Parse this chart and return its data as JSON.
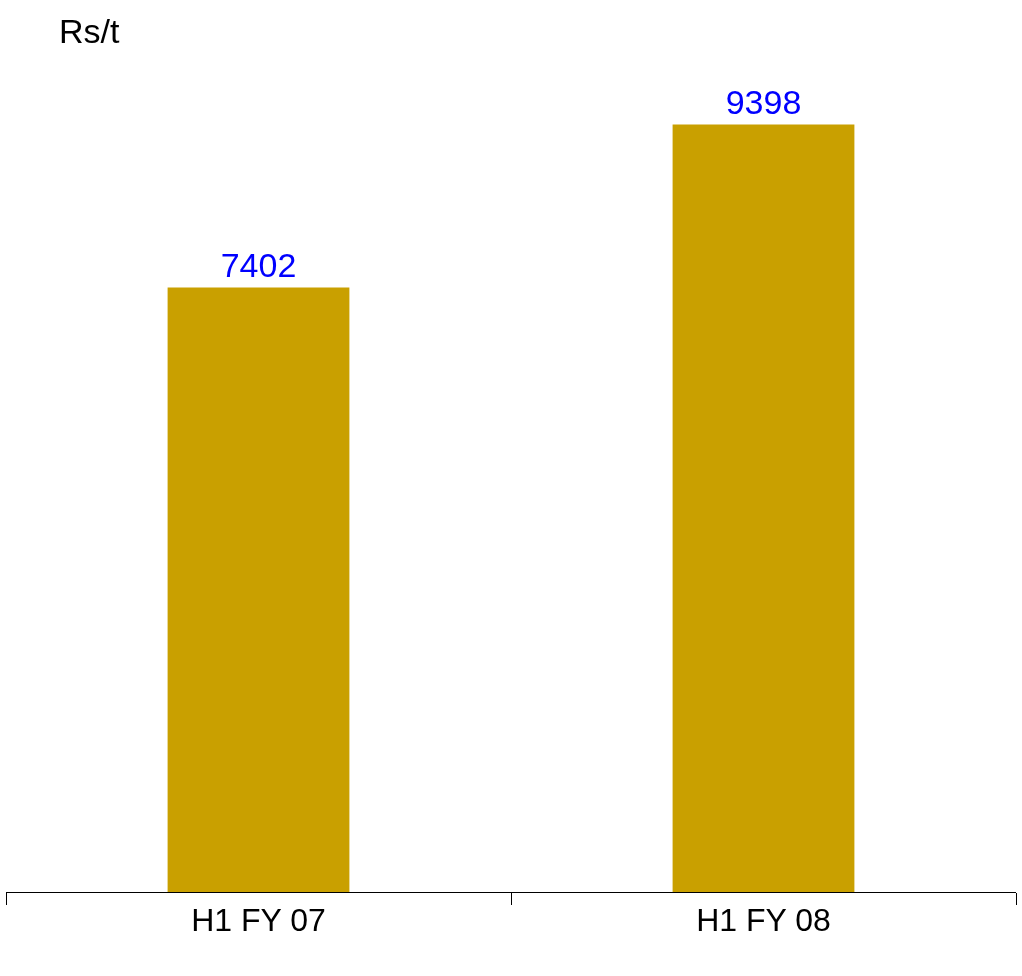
{
  "chart_data": {
    "type": "bar",
    "ylabel": "Rs/t",
    "categories": [
      "H1 FY 07",
      "H1 FY 08"
    ],
    "values": [
      7402,
      9398
    ],
    "color": "#c9a000",
    "data_labels": true,
    "tick_labels": "x",
    "legend": false
  }
}
